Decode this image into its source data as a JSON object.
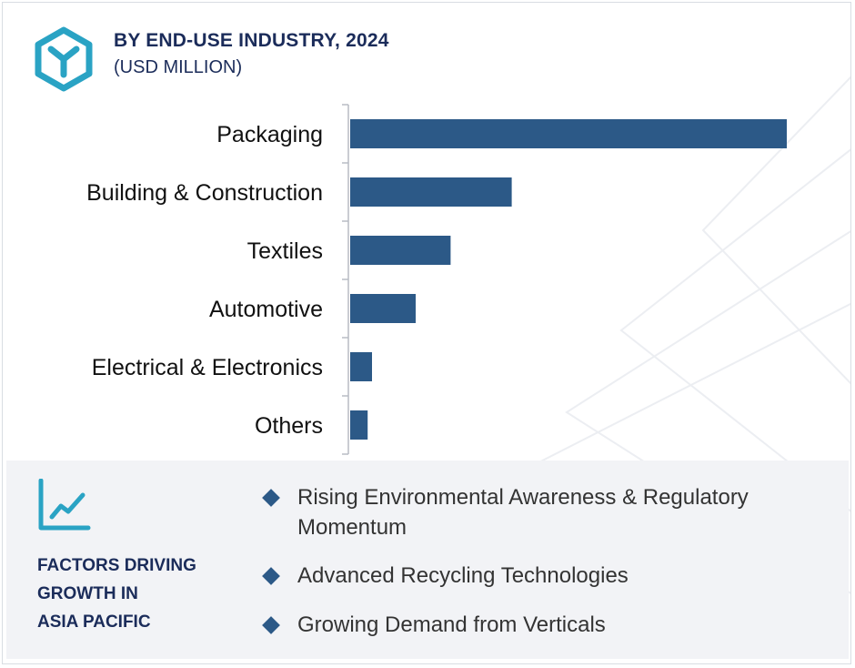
{
  "header": {
    "title": "BY END-USE INDUSTRY, 2024",
    "subtitle": "(USD MILLION)",
    "logo_icon": "hexagon-y-logo-icon"
  },
  "colors": {
    "bar": "#2c5987",
    "title": "#1b2c5a",
    "logo": "#2aa3c4",
    "panel_bg": "#f2f3f6"
  },
  "chart_data": {
    "type": "bar",
    "orientation": "horizontal",
    "title": "BY END-USE INDUSTRY, 2024",
    "subtitle": "(USD MILLION)",
    "categories": [
      "Packaging",
      "Building & Construction",
      "Textiles",
      "Automotive",
      "Electrical & Electronics",
      "Others"
    ],
    "values": [
      100,
      37,
      23,
      15,
      5,
      4
    ],
    "value_axis_shown": false,
    "grid": false,
    "legend": "none"
  },
  "factors": {
    "icon": "trend-line-chart-icon",
    "title_lines": [
      "FACTORS DRIVING",
      "GROWTH IN",
      "ASIA PACIFIC"
    ],
    "items": [
      {
        "lines": [
          "Rising Environmental Awareness & Regulatory",
          "Momentum"
        ]
      },
      {
        "lines": [
          "Advanced Recycling Technologies"
        ]
      },
      {
        "lines": [
          "Growing Demand from Verticals"
        ]
      }
    ]
  }
}
